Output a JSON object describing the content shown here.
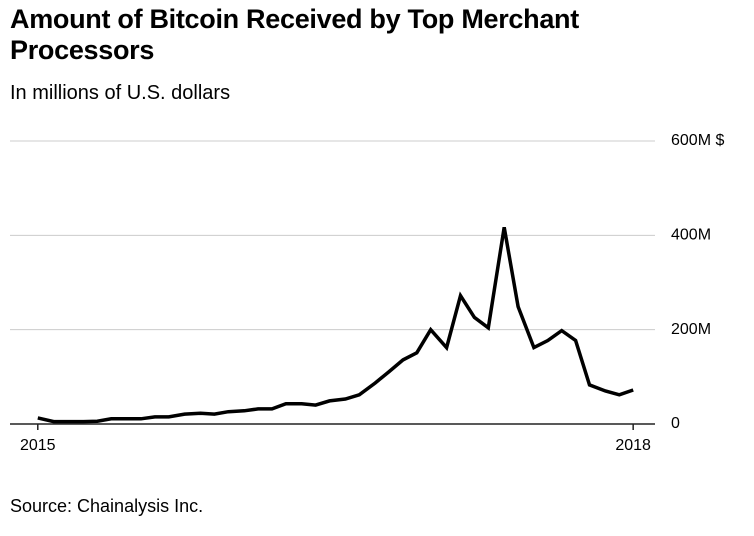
{
  "chart_data": {
    "type": "line",
    "title": "Amount of Bitcoin Received by Top Merchant Processors",
    "subtitle": "In millions of U.S. dollars",
    "source": "Source: Chainalysis Inc.",
    "x": [
      2015.0,
      2015.08,
      2015.15,
      2015.23,
      2015.3,
      2015.37,
      2015.45,
      2015.52,
      2015.59,
      2015.66,
      2015.74,
      2015.82,
      2015.89,
      2015.96,
      2016.04,
      2016.11,
      2016.18,
      2016.25,
      2016.33,
      2016.4,
      2016.47,
      2016.55,
      2016.62,
      2016.7,
      2016.77,
      2016.84,
      2016.91,
      2016.98,
      2017.06,
      2017.13,
      2017.2,
      2017.27,
      2017.35,
      2017.42,
      2017.5,
      2017.57,
      2017.64,
      2017.71,
      2017.78,
      2017.86,
      2017.93,
      2018.0
    ],
    "series": [
      {
        "color": "#000000",
        "values": [
          13,
          5,
          5,
          5,
          6,
          11,
          11,
          11,
          15,
          15,
          21,
          23,
          21,
          26,
          28,
          32,
          32,
          43,
          43,
          40,
          49,
          53,
          62,
          87,
          111,
          136,
          151,
          200,
          162,
          272,
          226,
          204,
          417,
          249,
          162,
          177,
          198,
          177,
          83,
          70,
          62,
          72
        ]
      }
    ],
    "xlim": [
      2014.86,
      2018.11
    ],
    "xticks": [
      2015,
      2018
    ],
    "ylim": [
      0,
      600
    ],
    "yticks": [
      {
        "value": 0,
        "label": "0"
      },
      {
        "value": 200,
        "label": "200M"
      },
      {
        "value": 400,
        "label": "400M"
      },
      {
        "value": 600,
        "label": "600M $"
      }
    ],
    "grid": true
  }
}
